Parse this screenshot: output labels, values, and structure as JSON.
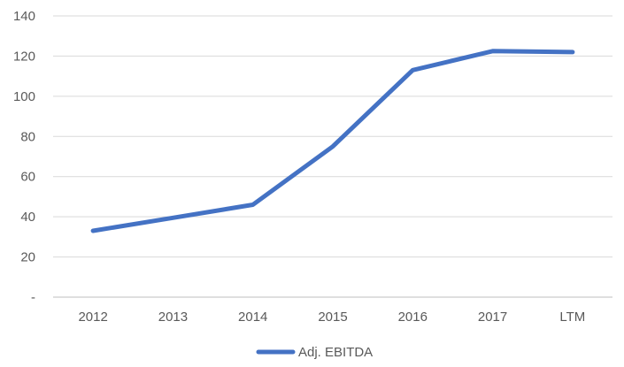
{
  "chart_data": {
    "type": "line",
    "categories": [
      "2012",
      "2013",
      "2014",
      "2015",
      "2016",
      "2017",
      "LTM"
    ],
    "series": [
      {
        "name": "Adj. EBITDA",
        "values": [
          33,
          39.5,
          46,
          75,
          113,
          122.5,
          122
        ],
        "color": "#4472c4"
      }
    ],
    "ylim": [
      0,
      140
    ],
    "yticks": [
      0,
      20,
      40,
      60,
      80,
      100,
      120,
      140
    ],
    "ytick_labels": [
      "-",
      "20",
      "40",
      "60",
      "80",
      "100",
      "120",
      "140"
    ],
    "grid": true,
    "legend": "bottom"
  }
}
